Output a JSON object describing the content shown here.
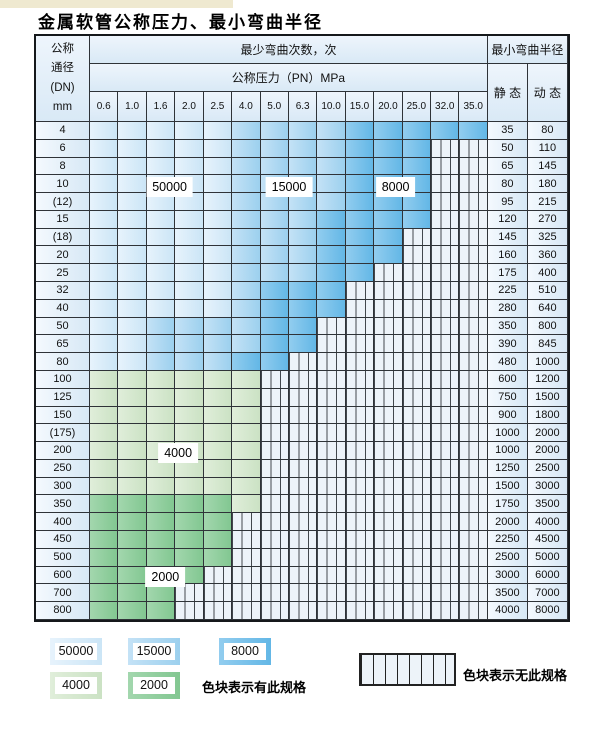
{
  "title": "金属软管公称压力、最小弯曲半径",
  "chart_data": {
    "type": "table",
    "title": "金属软管公称压力、最小弯曲半径",
    "header": {
      "dn_label_lines": [
        "公称",
        "通径",
        "(DN)",
        "mm"
      ],
      "bend_cycles_label": "最少弯曲次数，次",
      "pressure_label": "公称压力（PN）MPa",
      "radius_label": "最小弯曲半径",
      "static_label": "静 态",
      "dynamic_label": "动 态"
    },
    "pressures": [
      "0.6",
      "1.0",
      "1.6",
      "2.0",
      "2.5",
      "4.0",
      "5.0",
      "6.3",
      "10.0",
      "15.0",
      "20.0",
      "25.0",
      "32.0",
      "35.0"
    ],
    "cell_code_meaning": {
      "b1": "50000次",
      "b2": "15000次",
      "b3": "8000次",
      "g1": "4000次",
      "g2": "2000次",
      "n": "无此规格"
    },
    "rows": [
      {
        "dn": "4",
        "cells": [
          "b1",
          "b1",
          "b1",
          "b1",
          "b1",
          "b2",
          "b2",
          "b2",
          "b2",
          "b3",
          "b3",
          "b3",
          "b3",
          "b3"
        ],
        "static": "35",
        "dynamic": "80"
      },
      {
        "dn": "6",
        "cells": [
          "b1",
          "b1",
          "b1",
          "b1",
          "b1",
          "b2",
          "b2",
          "b2",
          "b2",
          "b3",
          "b3",
          "b3",
          "n",
          "n"
        ],
        "static": "50",
        "dynamic": "110"
      },
      {
        "dn": "8",
        "cells": [
          "b1",
          "b1",
          "b1",
          "b1",
          "b1",
          "b2",
          "b2",
          "b2",
          "b2",
          "b3",
          "b3",
          "b3",
          "n",
          "n"
        ],
        "static": "65",
        "dynamic": "145"
      },
      {
        "dn": "10",
        "cells": [
          "b1",
          "b1",
          "b1",
          "b1",
          "b1",
          "b2",
          "b2",
          "b2",
          "b2",
          "b3",
          "b3",
          "b3",
          "n",
          "n"
        ],
        "static": "80",
        "dynamic": "180"
      },
      {
        "dn": "(12)",
        "cells": [
          "b1",
          "b1",
          "b1",
          "b1",
          "b1",
          "b2",
          "b2",
          "b2",
          "b2",
          "b3",
          "b3",
          "b3",
          "n",
          "n"
        ],
        "static": "95",
        "dynamic": "215"
      },
      {
        "dn": "15",
        "cells": [
          "b1",
          "b1",
          "b1",
          "b1",
          "b1",
          "b2",
          "b2",
          "b2",
          "b3",
          "b3",
          "b3",
          "b3",
          "n",
          "n"
        ],
        "static": "120",
        "dynamic": "270"
      },
      {
        "dn": "(18)",
        "cells": [
          "b1",
          "b1",
          "b1",
          "b1",
          "b1",
          "b2",
          "b2",
          "b2",
          "b3",
          "b3",
          "b3",
          "n",
          "n",
          "n"
        ],
        "static": "145",
        "dynamic": "325"
      },
      {
        "dn": "20",
        "cells": [
          "b1",
          "b1",
          "b1",
          "b1",
          "b1",
          "b2",
          "b2",
          "b2",
          "b3",
          "b3",
          "b3",
          "n",
          "n",
          "n"
        ],
        "static": "160",
        "dynamic": "360"
      },
      {
        "dn": "25",
        "cells": [
          "b1",
          "b1",
          "b1",
          "b1",
          "b1",
          "b2",
          "b2",
          "b2",
          "b3",
          "b3",
          "n",
          "n",
          "n",
          "n"
        ],
        "static": "175",
        "dynamic": "400"
      },
      {
        "dn": "32",
        "cells": [
          "b1",
          "b1",
          "b1",
          "b1",
          "b1",
          "b2",
          "b3",
          "b3",
          "b3",
          "n",
          "n",
          "n",
          "n",
          "n"
        ],
        "static": "225",
        "dynamic": "510"
      },
      {
        "dn": "40",
        "cells": [
          "b1",
          "b1",
          "b1",
          "b1",
          "b1",
          "b2",
          "b3",
          "b3",
          "b3",
          "n",
          "n",
          "n",
          "n",
          "n"
        ],
        "static": "280",
        "dynamic": "640"
      },
      {
        "dn": "50",
        "cells": [
          "b1",
          "b1",
          "b2",
          "b2",
          "b2",
          "b2",
          "b3",
          "b3",
          "n",
          "n",
          "n",
          "n",
          "n",
          "n"
        ],
        "static": "350",
        "dynamic": "800"
      },
      {
        "dn": "65",
        "cells": [
          "b1",
          "b1",
          "b2",
          "b2",
          "b2",
          "b2",
          "b3",
          "b3",
          "n",
          "n",
          "n",
          "n",
          "n",
          "n"
        ],
        "static": "390",
        "dynamic": "845"
      },
      {
        "dn": "80",
        "cells": [
          "b1",
          "b1",
          "b2",
          "b2",
          "b2",
          "b3",
          "b3",
          "n",
          "n",
          "n",
          "n",
          "n",
          "n",
          "n"
        ],
        "static": "480",
        "dynamic": "1000"
      },
      {
        "dn": "100",
        "cells": [
          "g1",
          "g1",
          "g1",
          "g1",
          "g1",
          "g1",
          "n",
          "n",
          "n",
          "n",
          "n",
          "n",
          "n",
          "n"
        ],
        "static": "600",
        "dynamic": "1200"
      },
      {
        "dn": "125",
        "cells": [
          "g1",
          "g1",
          "g1",
          "g1",
          "g1",
          "g1",
          "n",
          "n",
          "n",
          "n",
          "n",
          "n",
          "n",
          "n"
        ],
        "static": "750",
        "dynamic": "1500"
      },
      {
        "dn": "150",
        "cells": [
          "g1",
          "g1",
          "g1",
          "g1",
          "g1",
          "g1",
          "n",
          "n",
          "n",
          "n",
          "n",
          "n",
          "n",
          "n"
        ],
        "static": "900",
        "dynamic": "1800"
      },
      {
        "dn": "(175)",
        "cells": [
          "g1",
          "g1",
          "g1",
          "g1",
          "g1",
          "g1",
          "n",
          "n",
          "n",
          "n",
          "n",
          "n",
          "n",
          "n"
        ],
        "static": "1000",
        "dynamic": "2000"
      },
      {
        "dn": "200",
        "cells": [
          "g1",
          "g1",
          "g1",
          "g1",
          "g1",
          "g1",
          "n",
          "n",
          "n",
          "n",
          "n",
          "n",
          "n",
          "n"
        ],
        "static": "1000",
        "dynamic": "2000"
      },
      {
        "dn": "250",
        "cells": [
          "g1",
          "g1",
          "g1",
          "g1",
          "g1",
          "g1",
          "n",
          "n",
          "n",
          "n",
          "n",
          "n",
          "n",
          "n"
        ],
        "static": "1250",
        "dynamic": "2500"
      },
      {
        "dn": "300",
        "cells": [
          "g1",
          "g1",
          "g1",
          "g1",
          "g1",
          "g1",
          "n",
          "n",
          "n",
          "n",
          "n",
          "n",
          "n",
          "n"
        ],
        "static": "1500",
        "dynamic": "3000"
      },
      {
        "dn": "350",
        "cells": [
          "g2",
          "g2",
          "g2",
          "g2",
          "g2",
          "g1",
          "n",
          "n",
          "n",
          "n",
          "n",
          "n",
          "n",
          "n"
        ],
        "static": "1750",
        "dynamic": "3500"
      },
      {
        "dn": "400",
        "cells": [
          "g2",
          "g2",
          "g2",
          "g2",
          "g2",
          "n",
          "n",
          "n",
          "n",
          "n",
          "n",
          "n",
          "n",
          "n"
        ],
        "static": "2000",
        "dynamic": "4000"
      },
      {
        "dn": "450",
        "cells": [
          "g2",
          "g2",
          "g2",
          "g2",
          "g2",
          "n",
          "n",
          "n",
          "n",
          "n",
          "n",
          "n",
          "n",
          "n"
        ],
        "static": "2250",
        "dynamic": "4500"
      },
      {
        "dn": "500",
        "cells": [
          "g2",
          "g2",
          "g2",
          "g2",
          "g2",
          "n",
          "n",
          "n",
          "n",
          "n",
          "n",
          "n",
          "n",
          "n"
        ],
        "static": "2500",
        "dynamic": "5000"
      },
      {
        "dn": "600",
        "cells": [
          "g2",
          "g2",
          "g2",
          "g2",
          "n",
          "n",
          "n",
          "n",
          "n",
          "n",
          "n",
          "n",
          "n",
          "n"
        ],
        "static": "3000",
        "dynamic": "6000"
      },
      {
        "dn": "700",
        "cells": [
          "g2",
          "g2",
          "g2",
          "n",
          "n",
          "n",
          "n",
          "n",
          "n",
          "n",
          "n",
          "n",
          "n",
          "n"
        ],
        "static": "3500",
        "dynamic": "7000"
      },
      {
        "dn": "800",
        "cells": [
          "g2",
          "g2",
          "g2",
          "n",
          "n",
          "n",
          "n",
          "n",
          "n",
          "n",
          "n",
          "n",
          "n",
          "n"
        ],
        "static": "4000",
        "dynamic": "8000"
      }
    ],
    "region_labels": [
      {
        "text": "50000",
        "col": 2.8,
        "row": 3.65
      },
      {
        "text": "15000",
        "col": 7.0,
        "row": 3.65
      },
      {
        "text": "8000",
        "col": 10.75,
        "row": 3.65
      },
      {
        "text": "4000",
        "col": 3.1,
        "row": 18.6
      },
      {
        "text": "2000",
        "col": 2.65,
        "row": 25.6
      }
    ]
  },
  "legend": {
    "items": [
      {
        "code": "b1",
        "label": "50000"
      },
      {
        "code": "b2",
        "label": "15000"
      },
      {
        "code": "b3",
        "label": "8000"
      },
      {
        "code": "g1",
        "label": "4000"
      },
      {
        "code": "g2",
        "label": "2000"
      }
    ],
    "has_spec_text": "色块表示有此规格",
    "no_spec_text": "色块表示无此规格"
  },
  "colors": {
    "page": "#ffffff",
    "cream": "#efe9d0",
    "border": "#15181b",
    "grid": "#2f3338",
    "head_a": "#eef5fc",
    "head_b": "#d9e9f6",
    "label_a": "#f4f9fe",
    "label_b": "#d7e8f5",
    "b1a": "#e7f3fc",
    "b1b": "#cbe5f6",
    "b2a": "#c4e2f6",
    "b2b": "#9cd0ee",
    "b3a": "#92cdef",
    "b3b": "#63b7e6",
    "g1a": "#e0eeda",
    "g1b": "#cbe2c4",
    "g2a": "#a3d7ae",
    "g2b": "#82c791",
    "hatch_bg": "#edf3f9",
    "hatch_line": "#42474d"
  }
}
